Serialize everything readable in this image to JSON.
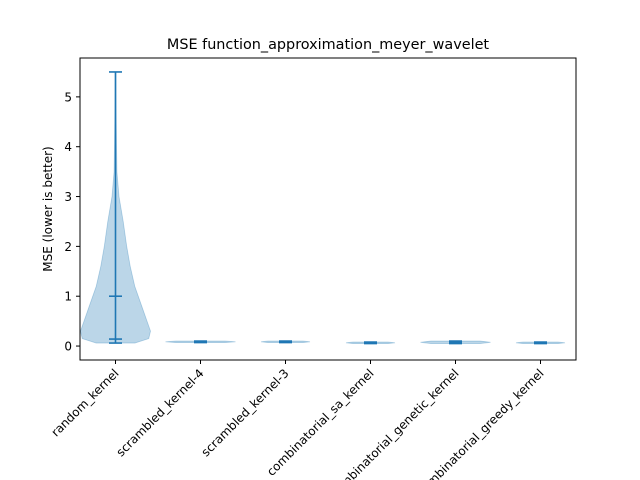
{
  "chart_data": {
    "type": "violin",
    "title": "MSE function_approximation_meyer_wavelet",
    "xlabel": "",
    "ylabel": "MSE (lower is better)",
    "ylim": [
      -0.28,
      5.78
    ],
    "yticks": [
      0,
      1,
      2,
      3,
      4,
      5
    ],
    "grid": false,
    "colors": {
      "line": "#1f77b4",
      "fill": "#1f77b4"
    },
    "categories": [
      "random_kernel",
      "scrambled_kernel-4",
      "scrambled_kernel-3",
      "combinatorial_sa_kernel",
      "combinatorial_genetic_kernel",
      "combinatorial_greedy_kernel"
    ],
    "series": [
      {
        "min": 0.06,
        "max": 5.5,
        "median": 0.14,
        "mean": 1.0,
        "density": [
          [
            0.06,
            0.55
          ],
          [
            0.15,
            0.95
          ],
          [
            0.3,
            1.0
          ],
          [
            0.5,
            0.9
          ],
          [
            0.8,
            0.75
          ],
          [
            1.2,
            0.55
          ],
          [
            1.6,
            0.42
          ],
          [
            2.0,
            0.32
          ],
          [
            2.5,
            0.22
          ],
          [
            3.0,
            0.1
          ],
          [
            3.5,
            0.04
          ],
          [
            4.5,
            0.02
          ],
          [
            5.5,
            0.01
          ]
        ]
      },
      {
        "min": 0.07,
        "max": 0.1,
        "median": 0.085,
        "mean": 0.085,
        "density": [
          [
            0.07,
            0.7
          ],
          [
            0.085,
            1.0
          ],
          [
            0.1,
            0.7
          ]
        ]
      },
      {
        "min": 0.07,
        "max": 0.1,
        "median": 0.085,
        "mean": 0.085,
        "density": [
          [
            0.07,
            0.5
          ],
          [
            0.085,
            0.7
          ],
          [
            0.1,
            0.5
          ]
        ]
      },
      {
        "min": 0.05,
        "max": 0.08,
        "median": 0.065,
        "mean": 0.065,
        "density": [
          [
            0.05,
            0.5
          ],
          [
            0.065,
            0.7
          ],
          [
            0.08,
            0.5
          ]
        ]
      },
      {
        "min": 0.05,
        "max": 0.1,
        "median": 0.075,
        "mean": 0.075,
        "density": [
          [
            0.05,
            0.7
          ],
          [
            0.075,
            1.0
          ],
          [
            0.1,
            0.7
          ]
        ]
      },
      {
        "min": 0.05,
        "max": 0.08,
        "median": 0.065,
        "mean": 0.065,
        "density": [
          [
            0.05,
            0.5
          ],
          [
            0.065,
            0.7
          ],
          [
            0.08,
            0.5
          ]
        ]
      }
    ]
  }
}
